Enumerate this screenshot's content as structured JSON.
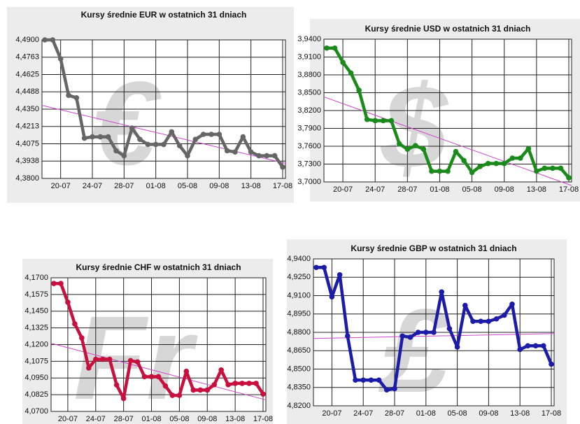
{
  "chart_data": [
    {
      "type": "line",
      "title": "Kursy średnie EUR w ostatnich 31 dniach",
      "watermark": "€",
      "categories": [
        null,
        null,
        "20-07",
        null,
        null,
        null,
        "24-07",
        null,
        null,
        null,
        "28-07",
        null,
        null,
        null,
        "01-08",
        null,
        null,
        null,
        "05-08",
        null,
        null,
        null,
        "09-08",
        null,
        null,
        null,
        "13-08",
        null,
        null,
        null,
        "17-08"
      ],
      "series": [
        {
          "color": "#666666",
          "values": [
            4.49,
            4.49,
            4.475,
            4.446,
            4.444,
            4.412,
            4.413,
            4.413,
            4.413,
            4.402,
            4.398,
            4.42,
            4.411,
            4.407,
            4.407,
            4.407,
            4.417,
            4.406,
            4.398,
            4.411,
            4.415,
            4.415,
            4.415,
            4.402,
            4.401,
            4.413,
            4.401,
            4.398,
            4.398,
            4.398,
            4.389
          ]
        }
      ],
      "trend": [
        4.438,
        4.392
      ],
      "trend_color": "#cc44cc",
      "ylim": [
        4.38,
        4.49
      ],
      "yticks": [
        {
          "value": 4.38,
          "label": "4,3800"
        },
        {
          "value": 4.39375,
          "label": "4,3938"
        },
        {
          "value": 4.4075,
          "label": "4,4075"
        },
        {
          "value": 4.42125,
          "label": "4,4213"
        },
        {
          "value": 4.435,
          "label": "4,4350"
        },
        {
          "value": 4.44875,
          "label": "4,4488"
        },
        {
          "value": 4.4625,
          "label": "4,4625"
        },
        {
          "value": 4.47625,
          "label": "4,4763"
        },
        {
          "value": 4.49,
          "label": "4,4900"
        }
      ],
      "grid": true
    },
    {
      "type": "line",
      "title": "Kursy średnie USD w ostatnich 31 dniach",
      "watermark": "$",
      "categories": [
        null,
        null,
        "20-07",
        null,
        null,
        null,
        "24-07",
        null,
        null,
        null,
        "28-07",
        null,
        null,
        null,
        "01-08",
        null,
        null,
        null,
        "05-08",
        null,
        null,
        null,
        "09-08",
        null,
        null,
        null,
        "13-08",
        null,
        null,
        null,
        "17-08"
      ],
      "series": [
        {
          "color": "#1a8a1a",
          "values": [
            3.925,
            3.925,
            3.901,
            3.883,
            3.854,
            3.805,
            3.803,
            3.803,
            3.803,
            3.764,
            3.755,
            3.761,
            3.755,
            3.718,
            3.718,
            3.718,
            3.751,
            3.736,
            3.716,
            3.726,
            3.731,
            3.731,
            3.731,
            3.74,
            3.74,
            3.756,
            3.718,
            3.723,
            3.723,
            3.723,
            3.707
          ]
        }
      ],
      "trend": [
        3.843,
        3.694
      ],
      "trend_color": "#cc44cc",
      "ylim": [
        3.7,
        3.94
      ],
      "yticks": [
        {
          "value": 3.7,
          "label": "3,7000"
        },
        {
          "value": 3.73,
          "label": "3,7300"
        },
        {
          "value": 3.76,
          "label": "3,7600"
        },
        {
          "value": 3.79,
          "label": "3,7900"
        },
        {
          "value": 3.82,
          "label": "3,8200"
        },
        {
          "value": 3.85,
          "label": "3,8500"
        },
        {
          "value": 3.88,
          "label": "3,8800"
        },
        {
          "value": 3.91,
          "label": "3,9100"
        },
        {
          "value": 3.94,
          "label": "3,9400"
        }
      ],
      "grid": true
    },
    {
      "type": "line",
      "title": "Kursy średnie CHF w ostatnich 31 dniach",
      "watermark": "Fr",
      "categories": [
        null,
        null,
        "20-07",
        null,
        null,
        null,
        "24-07",
        null,
        null,
        null,
        "28-07",
        null,
        null,
        null,
        "01-08",
        null,
        null,
        null,
        "05-08",
        null,
        null,
        null,
        "09-08",
        null,
        null,
        null,
        "13-08",
        null,
        null,
        null,
        "17-08"
      ],
      "series": [
        {
          "color": "#c8103e",
          "values": [
            4.1657,
            4.1657,
            4.1517,
            4.1355,
            4.125,
            4.1025,
            4.109,
            4.109,
            4.109,
            4.0898,
            4.0797,
            4.108,
            4.107,
            4.096,
            4.096,
            4.096,
            4.089,
            4.082,
            4.082,
            4.1,
            4.086,
            4.086,
            4.086,
            4.09,
            4.101,
            4.09,
            4.091,
            4.091,
            4.091,
            4.091,
            4.083
          ]
        }
      ],
      "trend": [
        4.121,
        4.0786
      ],
      "trend_color": "#cc44cc",
      "ylim": [
        4.07,
        4.17
      ],
      "yticks": [
        {
          "value": 4.07,
          "label": "4,0700"
        },
        {
          "value": 4.0825,
          "label": "4,0825"
        },
        {
          "value": 4.095,
          "label": "4,0950"
        },
        {
          "value": 4.1075,
          "label": "4,1075"
        },
        {
          "value": 4.12,
          "label": "4,1200"
        },
        {
          "value": 4.1325,
          "label": "4,1325"
        },
        {
          "value": 4.145,
          "label": "4,1450"
        },
        {
          "value": 4.1575,
          "label": "4,1575"
        },
        {
          "value": 4.17,
          "label": "4,1700"
        }
      ],
      "grid": true
    },
    {
      "type": "line",
      "title": "Kursy średnie GBP w ostatnich 31 dniach",
      "watermark": "£",
      "categories": [
        null,
        null,
        "20-07",
        null,
        null,
        null,
        "24-07",
        null,
        null,
        null,
        "28-07",
        null,
        null,
        null,
        "01-08",
        null,
        null,
        null,
        "05-08",
        null,
        null,
        null,
        "09-08",
        null,
        null,
        null,
        "13-08",
        null,
        null,
        null,
        "17-08"
      ],
      "series": [
        {
          "color": "#1c1ca8",
          "values": [
            4.933,
            4.933,
            4.909,
            4.927,
            4.877,
            4.841,
            4.841,
            4.841,
            4.841,
            4.833,
            4.834,
            4.877,
            4.876,
            4.88,
            4.88,
            4.88,
            4.913,
            4.883,
            4.868,
            4.902,
            4.889,
            4.889,
            4.889,
            4.891,
            4.894,
            4.903,
            4.866,
            4.869,
            4.869,
            4.869,
            4.854
          ]
        }
      ],
      "trend": [
        4.875,
        4.879
      ],
      "trend_color": "#cc44cc",
      "ylim": [
        4.82,
        4.94
      ],
      "yticks": [
        {
          "value": 4.82,
          "label": "4,8200"
        },
        {
          "value": 4.835,
          "label": "4,8350"
        },
        {
          "value": 4.85,
          "label": "4,8500"
        },
        {
          "value": 4.865,
          "label": "4,8650"
        },
        {
          "value": 4.88,
          "label": "4,8800"
        },
        {
          "value": 4.895,
          "label": "4,8950"
        },
        {
          "value": 4.91,
          "label": "4,9100"
        },
        {
          "value": 4.925,
          "label": "4,9250"
        },
        {
          "value": 4.94,
          "label": "4,9400"
        }
      ],
      "grid": true
    }
  ]
}
